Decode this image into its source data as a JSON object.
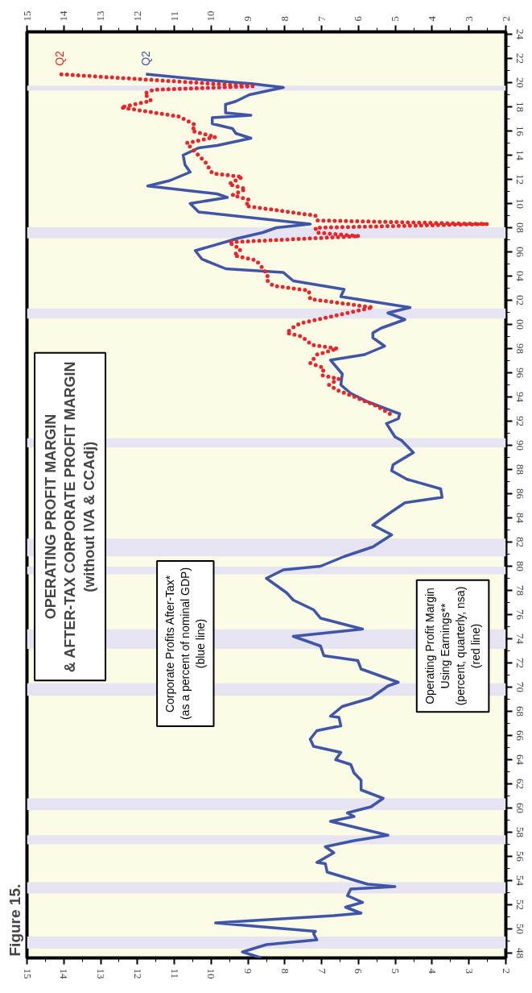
{
  "chart_data": {
    "type": "line",
    "title": "OPERATING PROFIT MARGIN & AFTER-TAX CORPORATE PROFIT MARGIN (without IVA & CCAdj)",
    "annotations": [
      "Figure 15.",
      "Corporate Profits After-Tax* (as a percent of nominal GDP) (blue line)",
      "Operating Profit Margin Using Earnings** (percent, quarterly, nsa) (red line)",
      "Q2",
      "Q2"
    ],
    "ylim": [
      1947.6,
      2024.2
    ],
    "yticks": [
      {
        "value": 1948,
        "label": "48"
      },
      {
        "value": 1950,
        "label": "50"
      },
      {
        "value": 1952,
        "label": "52"
      },
      {
        "value": 1954,
        "label": "54"
      },
      {
        "value": 1956,
        "label": "56"
      },
      {
        "value": 1958,
        "label": "58"
      },
      {
        "value": 1960,
        "label": "60"
      },
      {
        "value": 1962,
        "label": "62"
      },
      {
        "value": 1964,
        "label": "64"
      },
      {
        "value": 1966,
        "label": "66"
      },
      {
        "value": 1968,
        "label": "68"
      },
      {
        "value": 1970,
        "label": "70"
      },
      {
        "value": 1972,
        "label": "72"
      },
      {
        "value": 1974,
        "label": "74"
      },
      {
        "value": 1976,
        "label": "76"
      },
      {
        "value": 1978,
        "label": "78"
      },
      {
        "value": 1980,
        "label": "80"
      },
      {
        "value": 1982,
        "label": "82"
      },
      {
        "value": 1984,
        "label": "84"
      },
      {
        "value": 1986,
        "label": "86"
      },
      {
        "value": 1988,
        "label": "88"
      },
      {
        "value": 1990,
        "label": "90"
      },
      {
        "value": 1992,
        "label": "92"
      },
      {
        "value": 1994,
        "label": "94"
      },
      {
        "value": 1996,
        "label": "96"
      },
      {
        "value": 1998,
        "label": "98"
      },
      {
        "value": 2000,
        "label": "00"
      },
      {
        "value": 2002,
        "label": "02"
      },
      {
        "value": 2004,
        "label": "04"
      },
      {
        "value": 2006,
        "label": "06"
      },
      {
        "value": 2008,
        "label": "08"
      },
      {
        "value": 2010,
        "label": "10"
      },
      {
        "value": 2012,
        "label": "12"
      },
      {
        "value": 2014,
        "label": "14"
      },
      {
        "value": 2016,
        "label": "16"
      },
      {
        "value": 2018,
        "label": "18"
      },
      {
        "value": 2020,
        "label": "20"
      },
      {
        "value": 2022,
        "label": "22"
      },
      {
        "value": 2024,
        "label": "24"
      }
    ],
    "xlim": [
      15,
      2
    ],
    "xticks": [
      15,
      14,
      13,
      12,
      11,
      10,
      9,
      8,
      7,
      6,
      5,
      4,
      3,
      2
    ],
    "x2lim": [
      15,
      2
    ],
    "x2ticks": [
      15,
      14,
      13,
      12,
      11,
      10,
      9,
      8,
      7,
      6,
      5,
      4,
      3,
      2
    ],
    "bands": [
      {
        "axis": "y",
        "from": 1948.39,
        "to": 1949.36,
        "color": "#e6e4f2"
      },
      {
        "axis": "y",
        "from": 1952.94,
        "to": 1953.86,
        "color": "#e6e4f2"
      },
      {
        "axis": "y",
        "from": 1957.0,
        "to": 1957.75,
        "color": "#e6e4f2"
      },
      {
        "axis": "y",
        "from": 1959.84,
        "to": 1960.8,
        "color": "#e6e4f2"
      },
      {
        "axis": "y",
        "from": 1969.28,
        "to": 1970.31,
        "color": "#e6e4f2"
      },
      {
        "axis": "y",
        "from": 1973.17,
        "to": 1974.78,
        "color": "#e6e4f2"
      },
      {
        "axis": "y",
        "from": 1979.34,
        "to": 1979.97,
        "color": "#e6e4f2"
      },
      {
        "axis": "y",
        "from": 1980.81,
        "to": 1982.28,
        "color": "#e6e4f2"
      },
      {
        "axis": "y",
        "from": 1989.83,
        "to": 1990.58,
        "color": "#e6e4f2"
      },
      {
        "axis": "y",
        "from": 2000.48,
        "to": 2001.31,
        "color": "#e6e4f2"
      },
      {
        "axis": "y",
        "from": 2007.12,
        "to": 2008.04,
        "color": "#e6e4f2"
      },
      {
        "axis": "y",
        "from": 2019.34,
        "to": 2019.75,
        "color": "#e6e4f2"
      }
    ],
    "series": [
      {
        "color": "#3f56a8",
        "line_style": "solid",
        "values": [
          1947.6,
          1948.1,
          1948.7,
          1949.1,
          1949.6,
          1949.8,
          1950.5,
          1951.1,
          1951.3,
          1951.8,
          1952.2,
          1952.75,
          1953.3,
          1953.5,
          1953.7,
          1954.7,
          1955.4,
          1955.5,
          1955.9,
          1956.3,
          1956.8,
          1957.3,
          1957.75,
          1958.9,
          1959.3,
          1959.6,
          1960.1,
          1960.8,
          1961.5,
          1962.3,
          1962.9,
          1963.6,
          1964.0,
          1964.6,
          1965.1,
          1965.7,
          1966.4,
          1966.8,
          1967.5,
          1967.6,
          1968.4,
          1969.1,
          1970.1,
          1970.4,
          1970.7,
          1971.5,
          1972.2,
          1972.6,
          1973.4,
          1974.2,
          1974.8,
          1975.7,
          1976.4,
          1977.2,
          1977.8,
          1979.0,
          1979.7,
          1980.0,
          1980.8,
          1981.6,
          1982.6,
          1983.4,
          1984.3,
          1985.25,
          1985.7,
          1986.4,
          1987.2,
          1987.9,
          1988.4,
          1989.4,
          1990.4,
          1990.7,
          1991.8,
          1992.2,
          1992.6,
          1993.6,
          1994.3,
          1995.0,
          1995.9,
          1997.05,
          1997.5,
          1998.2,
          1998.9,
          1999.3,
          1999.7,
          2000.4,
          2000.95,
          2001.4,
          2002.3,
          2002.9,
          2003.6,
          2004.3,
          2004.6,
          2005.4,
          2006.1,
          2006.9,
          2007.1,
          2007.6,
          2008.0,
          2008.3,
          2009.3,
          2010.0,
          2010.5,
          2010.8,
          2011.45,
          2011.9,
          2012.6,
          2013.2,
          2014.0,
          2014.6,
          2014.8,
          2015.4,
          2015.8,
          2016.2,
          2016.6,
          2017.1,
          2017.3,
          2017.5,
          2018.2,
          2018.45,
          2019.0,
          2019.6,
          2019.9,
          2020.2,
          2020.7
        ],
        "x": [
          8.64,
          9.15,
          8.5,
          7.13,
          7.22,
          7.17,
          9.88,
          6.67,
          5.93,
          6.35,
          5.89,
          6.3,
          6.21,
          5.01,
          5.75,
          6.85,
          6.9,
          7.13,
          6.9,
          6.67,
          6.9,
          6.12,
          5.2,
          6.76,
          6.12,
          6.3,
          5.66,
          5.33,
          5.93,
          5.93,
          6.12,
          6.21,
          6.62,
          6.48,
          7.22,
          7.31,
          7.13,
          6.48,
          6.53,
          6.76,
          6.44,
          5.66,
          5.2,
          4.92,
          5.2,
          5.93,
          6.02,
          6.94,
          7.03,
          7.77,
          5.89,
          7.03,
          7.22,
          7.77,
          7.95,
          8.5,
          8.04,
          7.03,
          6.39,
          5.61,
          5.1,
          5.61,
          5.2,
          4.74,
          3.73,
          3.77,
          4.69,
          5.1,
          5.06,
          4.51,
          4.83,
          5.01,
          5.24,
          4.92,
          4.88,
          5.75,
          6.21,
          6.48,
          6.44,
          6.76,
          5.84,
          5.29,
          5.61,
          5.61,
          5.38,
          4.74,
          5.2,
          4.6,
          6.48,
          6.39,
          7.77,
          8.04,
          9.6,
          10.25,
          10.43,
          9.52,
          9.3,
          8.6,
          8.23,
          7.31,
          10.34,
          10.57,
          9.56,
          9.84,
          11.72,
          11.12,
          10.57,
          10.71,
          10.76,
          10.34,
          9.84,
          8.92,
          9.33,
          9.42,
          9.97,
          9.97,
          8.92,
          9.61,
          9.61,
          9.33,
          8.96,
          8.04,
          8.87,
          10.07,
          11.77
        ]
      },
      {
        "color": "#e8252b",
        "line_style": "dotted",
        "values": [
          1992.6,
          1993.2,
          1993.9,
          1994.55,
          1995.0,
          1995.5,
          1995.8,
          1996.4,
          1996.8,
          1997.5,
          1998.0,
          1998.3,
          1999.0,
          1999.3,
          1999.7,
          2000.1,
          2000.7,
          2001.4,
          2002.1,
          2002.8,
          2003.2,
          2003.7,
          2004.1,
          2004.8,
          2005.3,
          2005.7,
          2006.2,
          2006.8,
          2007.3,
          2007.6,
          2008.0,
          2008.3,
          2008.6,
          2009.0,
          2009.8,
          2010.3,
          2010.7,
          2011.2,
          2011.6,
          2012.2,
          2012.5,
          2013.45,
          2013.7,
          2015.0,
          2015.5,
          2016.0,
          2016.5,
          2017.2,
          2017.95,
          2018.5,
          2019.1,
          2019.4,
          2019.7,
          2020.7
        ],
        "x": [
          5.15,
          5.47,
          6.02,
          6.57,
          6.8,
          6.53,
          6.99,
          6.94,
          7.31,
          7.13,
          6.57,
          7.26,
          7.54,
          7.95,
          7.8,
          7.58,
          6.67,
          5.61,
          7.31,
          7.35,
          8.32,
          8.5,
          8.46,
          8.64,
          8.78,
          9.38,
          9.2,
          9.52,
          5.98,
          7.13,
          7.17,
          2.49,
          7.13,
          7.17,
          9.06,
          8.96,
          9.42,
          9.06,
          9.52,
          9.15,
          9.97,
          10.16,
          10.25,
          10.67,
          9.88,
          10.52,
          10.43,
          10.88,
          12.45,
          11.63,
          11.81,
          11.58,
          8.87,
          14.11
        ]
      }
    ]
  }
}
